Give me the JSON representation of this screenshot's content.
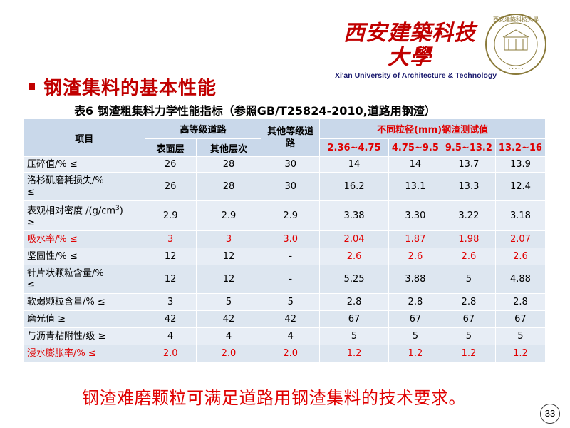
{
  "logo": {
    "chinese": "西安建築科技大學",
    "english": "Xi'an University of Architecture & Technology",
    "seal_text": "西安建築科技大學"
  },
  "section_title": "钢渣集料的基本性能",
  "table_caption": "表6 钢渣粗集料力学性能指标（参照GB/T25824-2010,道路用钢渣）",
  "table": {
    "header": {
      "item": "项目",
      "high_grade": "高等级道路",
      "surface": "表面层",
      "other_layers": "其他层次",
      "other_grade": "其他等级道路",
      "test_group": "不同粒径(mm)钢渣测试值",
      "sizes": [
        "2.36~4.75",
        "4.75~9.5",
        "9.5~13.2",
        "13.2~16"
      ]
    },
    "rows": [
      {
        "label": "压碎值/%      ≤",
        "vals": [
          "26",
          "28",
          "30",
          "14",
          "14",
          "13.7",
          "13.9"
        ]
      },
      {
        "label": "洛杉矶磨耗损失/%",
        "label2": "≤",
        "vals": [
          "26",
          "28",
          "30",
          "16.2",
          "13.1",
          "13.3",
          "12.4"
        ]
      },
      {
        "label": "表观相对密度 /(g/cm",
        "sup": "3",
        "label_end": ")",
        "label2": "≥",
        "vals": [
          "2.9",
          "2.9",
          "2.9",
          "3.38",
          "3.30",
          "3.22",
          "3.18"
        ]
      },
      {
        "label": "吸水率/%       ≤",
        "vals": [
          "3",
          "3",
          "3.0",
          "2.04",
          "1.87",
          "1.98",
          "2.07"
        ]
      },
      {
        "label": "坚固性/%       ≤",
        "vals": [
          "12",
          "12",
          "-",
          "2.6",
          "2.6",
          "2.6",
          "2.6"
        ]
      },
      {
        "label": "针片状颗粒含量/%",
        "label2": "≤",
        "vals": [
          "12",
          "12",
          "-",
          "5.25",
          "3.88",
          "5",
          "4.88"
        ]
      },
      {
        "label": "软弱颗粒含量/%  ≤",
        "vals": [
          "3",
          "5",
          "5",
          "2.8",
          "2.8",
          "2.8",
          "2.8"
        ]
      },
      {
        "label": "磨光值         ≥",
        "vals": [
          "42",
          "42",
          "42",
          "67",
          "67",
          "67",
          "67"
        ]
      },
      {
        "label": "与沥青粘附性/级  ≥",
        "vals": [
          "4",
          "4",
          "4",
          "5",
          "5",
          "5",
          "5"
        ]
      },
      {
        "label": "浸水膨胀率/%    ≤",
        "vals": [
          "2.0",
          "2.0",
          "2.0",
          "1.2",
          "1.2",
          "1.2",
          "1.2"
        ]
      }
    ]
  },
  "conclusion": "钢渣难磨颗粒可满足道路用钢渣集料的技术要求。",
  "page_number": "33",
  "colors": {
    "accent": "#c00000",
    "highlight": "#e00000",
    "header_bg": "#c9d8ea",
    "row_bg": "#e7edf5"
  }
}
